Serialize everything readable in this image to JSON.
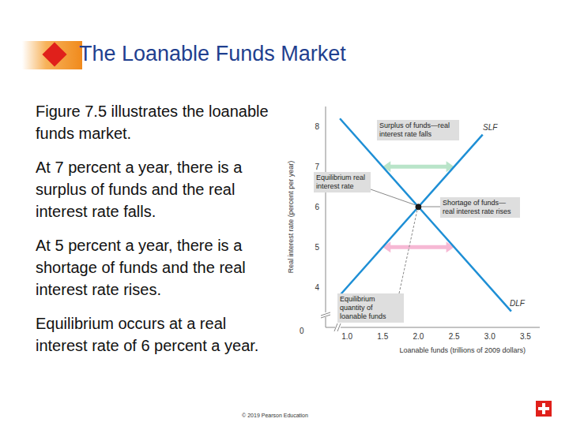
{
  "slide": {
    "title": "The Loanable Funds Market",
    "paragraphs": [
      "Figure 7.5 illustrates the loanable funds market.",
      "At 7 percent a year, there is a surplus of funds and the real interest rate falls.",
      "At 5 percent a year, there is a shortage of funds and the real interest rate rises.",
      "Equilibrium occurs at a real interest rate of 6 percent a year."
    ],
    "footer": "© 2019 Pearson Education"
  },
  "chart_data": {
    "type": "line",
    "x": [
      0.9,
      2.0,
      2.9,
      3.3
    ],
    "series": [
      {
        "name": "SLF",
        "color": "#1e8fd5",
        "values": [
          3.8,
          6,
          7.8,
          null
        ]
      },
      {
        "name": "DLF",
        "color": "#1e8fd5",
        "values": [
          8.2,
          6,
          null,
          3.4
        ]
      }
    ],
    "xlabel": "Loanable funds (trillions of 2009 dollars)",
    "ylabel": "Real interest rate (percent per year)",
    "xlim": [
      0.7,
      3.7
    ],
    "ylim": [
      3,
      8.5
    ],
    "xticks": [
      {
        "value": 1,
        "label": "1.0"
      },
      1.5,
      {
        "value": 2,
        "label": "2.0"
      },
      2.5,
      {
        "value": 3,
        "label": "3.0"
      },
      3.5
    ],
    "yticks": [
      4,
      5,
      6,
      7,
      8
    ],
    "origin_label": "0",
    "equilibrium": {
      "x": 2,
      "y": 6
    },
    "annotations": [
      {
        "text": "Surplus of funds—real interest rate falls",
        "y": 7,
        "x": [
          1.5,
          2.5
        ],
        "color": "#b9e4c9"
      },
      {
        "text": "Equilibrium real interest rate"
      },
      {
        "text": "Shortage of funds—real interest rate rises",
        "y": 5,
        "x": [
          1.5,
          2.5
        ],
        "color": "#f6b8d4"
      },
      {
        "text": "Equilibrium quantity of loanable funds"
      }
    ]
  }
}
